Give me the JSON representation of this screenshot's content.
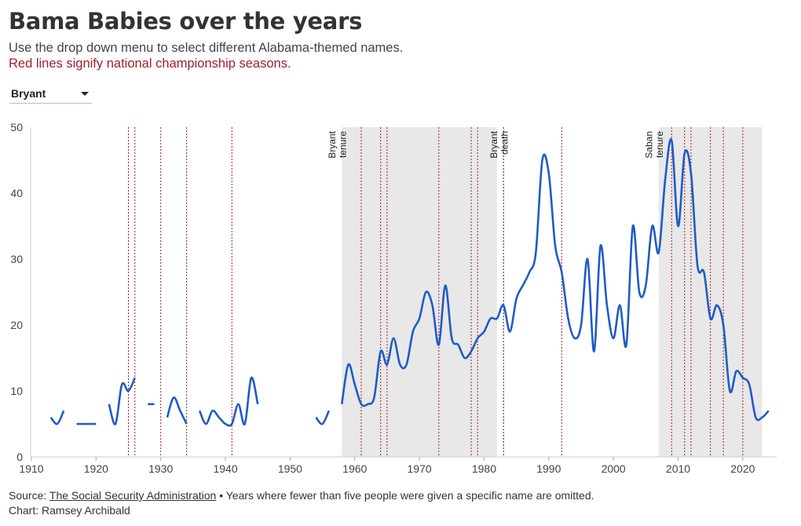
{
  "header": {
    "title": "Bama Babies over the years",
    "subtitle": "Use the drop down menu to select different Alabama-themed names.",
    "subtitle_note": "Red lines signify national championship seasons."
  },
  "dropdown": {
    "selected": "Bryant"
  },
  "colors": {
    "line": "#1f5bc6",
    "championship": "#a31e2a",
    "shade": "#e8e8e8",
    "death_line": "#222222"
  },
  "chart_data": {
    "type": "line",
    "xlim": [
      1910,
      2025
    ],
    "ylim": [
      0,
      50
    ],
    "x_ticks": [
      1910,
      1920,
      1930,
      1940,
      1950,
      1960,
      1970,
      1980,
      1990,
      2000,
      2010,
      2020
    ],
    "y_ticks": [
      0,
      10,
      20,
      30,
      40,
      50
    ],
    "series": [
      {
        "name": "Bryant",
        "segments": [
          [
            [
              1913,
              6
            ],
            [
              1914,
              5
            ],
            [
              1915,
              7
            ]
          ],
          [
            [
              1917,
              5
            ],
            [
              1918,
              5
            ],
            [
              1919,
              5
            ],
            [
              1920,
              5
            ]
          ],
          [
            [
              1922,
              8
            ],
            [
              1923,
              5
            ],
            [
              1924,
              11
            ],
            [
              1925,
              10
            ],
            [
              1926,
              12
            ]
          ],
          [
            [
              1928,
              8
            ],
            [
              1929,
              8
            ]
          ],
          [
            [
              1931,
              6
            ],
            [
              1932,
              9
            ],
            [
              1933,
              7
            ],
            [
              1934,
              5
            ]
          ],
          [
            [
              1936,
              7
            ],
            [
              1937,
              5
            ],
            [
              1938,
              7
            ],
            [
              1939,
              6
            ],
            [
              1940,
              5
            ],
            [
              1941,
              5
            ],
            [
              1942,
              8
            ],
            [
              1943,
              5
            ],
            [
              1944,
              12
            ],
            [
              1945,
              8
            ]
          ],
          [
            [
              1954,
              6
            ],
            [
              1955,
              5
            ],
            [
              1956,
              7
            ]
          ],
          [
            [
              1958,
              8
            ],
            [
              1959,
              14
            ],
            [
              1960,
              11
            ],
            [
              1961,
              8
            ],
            [
              1962,
              8
            ],
            [
              1963,
              9
            ],
            [
              1964,
              16
            ],
            [
              1965,
              14
            ],
            [
              1966,
              18
            ],
            [
              1967,
              14
            ],
            [
              1968,
              14
            ],
            [
              1969,
              19
            ],
            [
              1970,
              21
            ],
            [
              1971,
              25
            ],
            [
              1972,
              23
            ],
            [
              1973,
              17
            ],
            [
              1974,
              26
            ],
            [
              1975,
              18
            ],
            [
              1976,
              17
            ],
            [
              1977,
              15
            ],
            [
              1978,
              16
            ],
            [
              1979,
              18
            ],
            [
              1980,
              19
            ],
            [
              1981,
              21
            ],
            [
              1982,
              21
            ],
            [
              1983,
              23
            ],
            [
              1984,
              19
            ],
            [
              1985,
              24
            ],
            [
              1986,
              26
            ],
            [
              1987,
              28
            ],
            [
              1988,
              31
            ],
            [
              1989,
              45
            ],
            [
              1990,
              43
            ],
            [
              1991,
              32
            ],
            [
              1992,
              28
            ],
            [
              1993,
              21
            ],
            [
              1994,
              18
            ],
            [
              1995,
              20
            ],
            [
              1996,
              30
            ],
            [
              1997,
              16
            ],
            [
              1998,
              32
            ],
            [
              1999,
              23
            ],
            [
              2000,
              18
            ],
            [
              2001,
              23
            ],
            [
              2002,
              17
            ],
            [
              2003,
              35
            ],
            [
              2004,
              25
            ],
            [
              2005,
              26
            ],
            [
              2006,
              35
            ],
            [
              2007,
              31
            ],
            [
              2008,
              42
            ],
            [
              2009,
              48
            ],
            [
              2010,
              35
            ],
            [
              2011,
              46
            ],
            [
              2012,
              43
            ],
            [
              2013,
              29
            ],
            [
              2014,
              28
            ],
            [
              2015,
              21
            ],
            [
              2016,
              23
            ],
            [
              2017,
              20
            ],
            [
              2018,
              10
            ],
            [
              2019,
              13
            ],
            [
              2020,
              12
            ],
            [
              2021,
              11
            ],
            [
              2022,
              6
            ],
            [
              2023,
              6
            ],
            [
              2024,
              7
            ]
          ]
        ]
      }
    ],
    "shaded_periods": [
      {
        "label": [
          "Bryant",
          "tenure"
        ],
        "start": 1958,
        "end": 1982
      },
      {
        "label": [
          "Saban",
          "tenure"
        ],
        "start": 2007,
        "end": 2023
      }
    ],
    "event_lines": [
      {
        "label": [
          "Bryant",
          "death"
        ],
        "year": 1983
      }
    ],
    "championship_years": [
      1925,
      1926,
      1930,
      1934,
      1941,
      1961,
      1964,
      1965,
      1973,
      1978,
      1979,
      1992,
      2009,
      2011,
      2012,
      2015,
      2017,
      2020
    ]
  },
  "footer": {
    "source_prefix": "Source: ",
    "source_link": "The Social Security Administration",
    "source_note": " • Years where fewer than five people were given a specific name are omitted.",
    "credit": "Chart: Ramsey Archibald"
  }
}
